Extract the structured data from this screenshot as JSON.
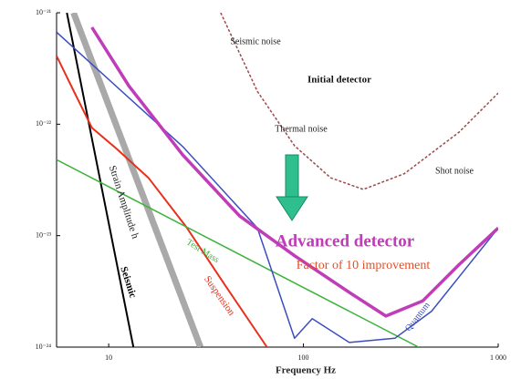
{
  "chart_data": {
    "type": "line",
    "log_x": true,
    "log_y": true,
    "x_label": "Frequency Hz",
    "xlim": [
      5.4,
      1000
    ],
    "ylim": [
      1e-24,
      1e-21
    ],
    "xticks": [
      10,
      100,
      {
        "value": 1000,
        "label": "1 000"
      }
    ],
    "yticks": [
      {
        "value": 1e-21,
        "label": "10⁻²¹"
      },
      {
        "value": 1e-22,
        "label": "10⁻²²"
      },
      {
        "value": 1e-23,
        "label": "10⁻²³"
      },
      {
        "value": 1e-24,
        "label": "10⁻²⁴"
      }
    ],
    "series": [
      {
        "color": "#9b4a4a",
        "dashed": true,
        "width": 1.5,
        "x": [
          37.6,
          58,
          90,
          138,
          203,
          330,
          630,
          1000
        ],
        "values": [
          1e-21,
          1.97e-22,
          6.4e-23,
          3.3e-23,
          2.6e-23,
          3.6e-23,
          8.5e-23,
          1.9e-22
        ]
      },
      {
        "color": "#a9a9a9",
        "width": 7,
        "x": [
          6.6,
          29.6
        ],
        "values": [
          1e-21,
          1e-24
        ]
      },
      {
        "color": "#000000",
        "width": 2,
        "x": [
          6.1,
          13.4
        ],
        "values": [
          1e-21,
          1e-24
        ]
      },
      {
        "color": "#e8301c",
        "width": 2,
        "x": [
          5.4,
          6.6,
          8.2,
          11,
          16,
          25,
          40,
          65
        ],
        "values": [
          4.1e-22,
          2e-22,
          9.3e-23,
          6e-23,
          3.3e-23,
          1.2e-23,
          3.5e-24,
          1e-24
        ]
      },
      {
        "color": "#3cb33c",
        "width": 1.5,
        "x": [
          5.4,
          390
        ],
        "values": [
          4.8e-23,
          1e-24
        ]
      },
      {
        "color": "#3a4ec0",
        "width": 1.5,
        "x": [
          5.4,
          24,
          58,
          90,
          111,
          172,
          295,
          455,
          1000
        ],
        "values": [
          6.7e-22,
          6.3e-23,
          1.17e-23,
          1.2e-24,
          1.8e-24,
          1.1e-24,
          1.2e-24,
          2.1e-24,
          1.17e-23
        ]
      },
      {
        "color": "#c03cb8",
        "width": 3.5,
        "x": [
          8.2,
          12.7,
          24,
          47,
          90,
          172,
          265,
          410,
          630,
          1000
        ],
        "values": [
          7.4e-22,
          2.2e-22,
          5.3e-23,
          1.5e-23,
          6.6e-24,
          3.1e-24,
          1.9e-24,
          2.6e-24,
          5.5e-24,
          1.17e-23
        ]
      }
    ],
    "annotations": [
      {
        "text": "Seismic noise",
        "color": "#222222"
      },
      {
        "text": "Initial detector",
        "color": "#111111"
      },
      {
        "text": "Thermal noise",
        "color": "#222222"
      },
      {
        "text": "Shot noise",
        "color": "#222222"
      },
      {
        "text": "Advanced detector",
        "color": "#c03cb8"
      },
      {
        "text": "Factor of 10 improvement",
        "color": "#e0502a"
      },
      {
        "text": "Strain Amplitude h",
        "color": "#222222"
      },
      {
        "text": "Seismic",
        "color": "#000000"
      },
      {
        "text": "Test Mass",
        "color": "#3cb33c"
      },
      {
        "text": "Suspension",
        "color": "#e8301c"
      },
      {
        "text": "Quantum",
        "color": "#3a4ec0"
      }
    ]
  }
}
